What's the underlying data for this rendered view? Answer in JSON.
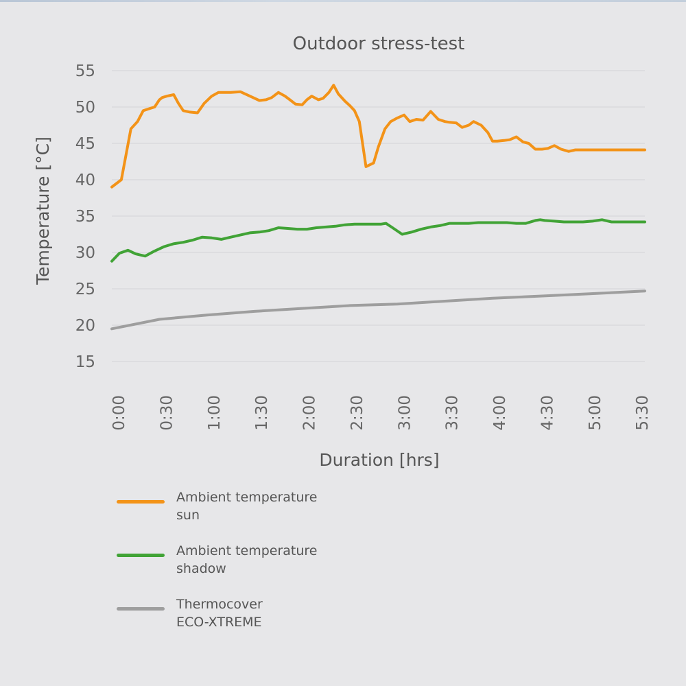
{
  "chart_data": {
    "type": "line",
    "title": "Outdoor stress-test",
    "xlabel": "Duration [hrs]",
    "ylabel": "Temperature [°C]",
    "ylim": [
      15,
      55
    ],
    "yticks": [
      15,
      20,
      25,
      30,
      35,
      40,
      45,
      50,
      55
    ],
    "xlim": [
      0,
      5.6
    ],
    "xtick_labels": [
      "0:00",
      "0:30",
      "1:00",
      "1:30",
      "2:00",
      "2:30",
      "3:00",
      "3:30",
      "4:00",
      "4:30",
      "5:00",
      "5:30"
    ],
    "grid": true,
    "legend_position": "bottom-left",
    "series": [
      {
        "name": "Ambient temperature sun",
        "color": "#f39318",
        "x": [
          0,
          0.1,
          0.2,
          0.27,
          0.33,
          0.4,
          0.45,
          0.5,
          0.53,
          0.58,
          0.65,
          0.7,
          0.75,
          0.82,
          0.9,
          0.97,
          1.05,
          1.12,
          1.18,
          1.25,
          1.35,
          1.45,
          1.55,
          1.62,
          1.68,
          1.75,
          1.82,
          1.87,
          1.93,
          2.0,
          2.05,
          2.1,
          2.17,
          2.22,
          2.28,
          2.33,
          2.38,
          2.45,
          2.5,
          2.55,
          2.6,
          2.67,
          2.75,
          2.8,
          2.87,
          2.93,
          3.0,
          3.07,
          3.13,
          3.2,
          3.27,
          3.35,
          3.43,
          3.5,
          3.55,
          3.62,
          3.68,
          3.75,
          3.8,
          3.88,
          3.95,
          4.0,
          4.05,
          4.12,
          4.18,
          4.25,
          4.32,
          4.38,
          4.45,
          4.52,
          4.58,
          4.65,
          4.72,
          4.8,
          4.87,
          4.93,
          5.0,
          5.07,
          5.13,
          5.2,
          5.27,
          5.3,
          5.35,
          5.42,
          5.48,
          5.55,
          5.6
        ],
        "y": [
          39,
          40,
          47,
          48,
          49.5,
          49.8,
          50,
          51,
          51.3,
          51.5,
          51.7,
          50.5,
          49.5,
          49.3,
          49.2,
          50.5,
          51.5,
          52,
          52,
          52,
          52.1,
          51.5,
          50.9,
          51,
          51.3,
          52,
          51.5,
          51,
          50.4,
          50.3,
          51,
          51.5,
          51,
          51.2,
          52,
          53,
          51.8,
          50.8,
          50.2,
          49.5,
          48,
          41.8,
          42.3,
          44.5,
          47,
          48,
          48.5,
          48.9,
          48,
          48.3,
          48.2,
          49.4,
          48.3,
          48,
          47.9,
          47.8,
          47.2,
          47.5,
          48,
          47.5,
          46.5,
          45.3,
          45.3,
          45.4,
          45.5,
          45.9,
          45.2,
          45,
          44.2,
          44.2,
          44.3,
          44.7,
          44.2,
          43.9,
          44.1,
          44.1,
          44.1,
          44.1,
          44.1,
          44.1,
          44.1,
          44.1,
          44.1,
          44.1,
          44.1,
          44.1,
          44.1
        ],
        "y_note_removed": true
      },
      {
        "name": "Ambient temperature shadow",
        "color": "#41a336",
        "x": [
          0,
          0.08,
          0.17,
          0.25,
          0.35,
          0.45,
          0.55,
          0.65,
          0.75,
          0.85,
          0.95,
          1.05,
          1.15,
          1.25,
          1.35,
          1.45,
          1.55,
          1.65,
          1.75,
          1.85,
          1.95,
          2.05,
          2.15,
          2.25,
          2.35,
          2.45,
          2.55,
          2.65,
          2.75,
          2.83,
          2.88,
          2.95,
          3.05,
          3.15,
          3.25,
          3.35,
          3.45,
          3.55,
          3.65,
          3.75,
          3.85,
          3.95,
          4.05,
          4.15,
          4.25,
          4.35,
          4.45,
          4.5,
          4.55,
          4.65,
          4.75,
          4.85,
          4.95,
          5.05,
          5.15,
          5.25,
          5.35,
          5.45,
          5.6
        ],
        "y": [
          28.8,
          29.9,
          30.3,
          29.8,
          29.5,
          30.2,
          30.8,
          31.2,
          31.4,
          31.7,
          32.1,
          32,
          31.8,
          32.1,
          32.4,
          32.7,
          32.8,
          33,
          33.4,
          33.3,
          33.2,
          33.2,
          33.4,
          33.5,
          33.6,
          33.8,
          33.9,
          33.9,
          33.9,
          33.9,
          34,
          33.4,
          32.5,
          32.8,
          33.2,
          33.5,
          33.7,
          34,
          34,
          34,
          34.1,
          34.1,
          34.1,
          34.1,
          34,
          34,
          34.4,
          34.5,
          34.4,
          34.3,
          34.2,
          34.2,
          34.2,
          34.3,
          34.5,
          34.2,
          34.2,
          34.2,
          34.2
        ]
      },
      {
        "name": "Thermocover ECO-XTREME",
        "color": "#9e9e9e",
        "x": [
          0,
          0.5,
          1.0,
          1.5,
          2.0,
          2.5,
          3.0,
          3.5,
          4.0,
          4.5,
          5.0,
          5.6
        ],
        "y": [
          19.5,
          20.8,
          21.4,
          21.9,
          22.3,
          22.7,
          22.9,
          23.3,
          23.7,
          24,
          24.3,
          24.7
        ]
      }
    ]
  },
  "legend": [
    {
      "line1": "Ambient temperature",
      "line2": "sun",
      "color": "#f39318"
    },
    {
      "line1": "Ambient temperature",
      "line2": "shadow",
      "color": "#41a336"
    },
    {
      "line1": "Thermocover",
      "line2": "ECO-XTREME",
      "color": "#9e9e9e"
    }
  ]
}
